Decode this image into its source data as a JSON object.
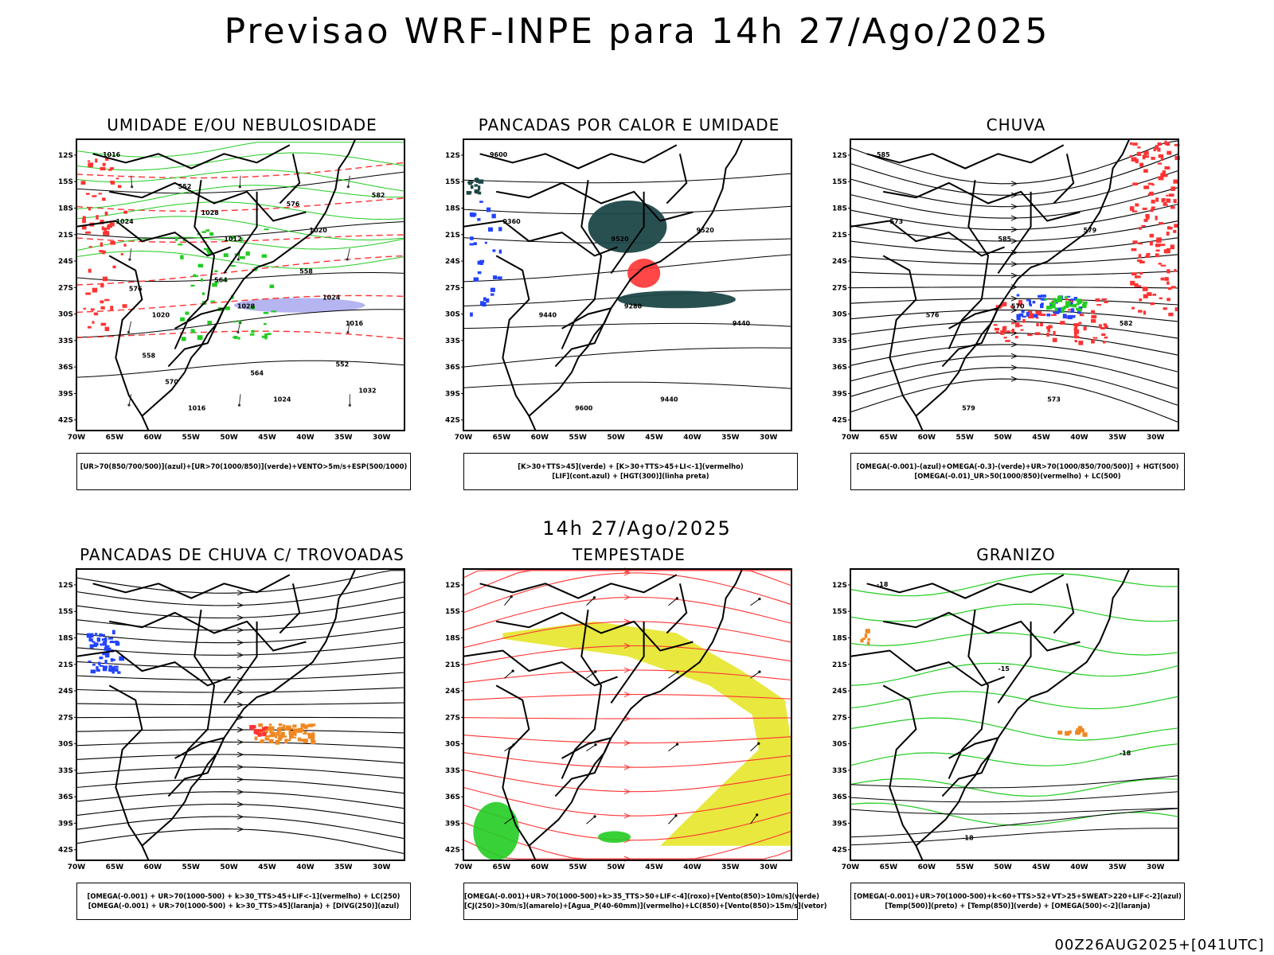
{
  "header": {
    "title": "Previsao WRF-INPE  para 14h 27/Ago/2025"
  },
  "section_mid": {
    "label": "14h 27/Ago/2025"
  },
  "footer": {
    "stamp": "00Z26AUG2025+[041UTC]"
  },
  "axes": {
    "lat_labels": [
      "12S",
      "15S",
      "18S",
      "21S",
      "24S",
      "27S",
      "30S",
      "33S",
      "36S",
      "39S",
      "42S"
    ],
    "lon_labels": [
      "70W",
      "65W",
      "60W",
      "55W",
      "50W",
      "45W",
      "40W",
      "35W",
      "30W"
    ]
  },
  "colors": {
    "red": "#ff3333",
    "green": "#22cc22",
    "blue": "#2244ff",
    "orange": "#ee8822",
    "yellow": "#e6e62a",
    "darkteal": "#1e4747",
    "lavender": "#a8a8ee"
  },
  "panels": [
    {
      "id": "umidade",
      "title": "UMIDADE E/OU NEBULOSIDADE",
      "caption": [
        "[UR>70(850/700/500)](azul)+[UR>70(1000/850)](verde)+VENTO>5m/s+ESP(500/1000)"
      ],
      "contour_labels": [
        "1016",
        "1012",
        "1016",
        "1016",
        "1020",
        "1020",
        "1024",
        "1024",
        "1028",
        "1032",
        "1028",
        "1024",
        "570",
        "576",
        "576",
        "564",
        "582",
        "564",
        "552",
        "552",
        "558",
        "558"
      ]
    },
    {
      "id": "pancadas_calor",
      "title": "PANCADAS POR CALOR E UMIDADE",
      "caption": [
        "[K>30+TTS>45](verde) + [K>30+TTS>45+LI<-1](vermelho)",
        "[LIF](cont.azul) + [HGT(300)](linha preta)"
      ],
      "contour_labels": [
        "9600",
        "9520",
        "9440",
        "9600",
        "9520",
        "9440",
        "9440",
        "9360",
        "9280"
      ]
    },
    {
      "id": "chuva",
      "title": "CHUVA",
      "caption": [
        "[OMEGA(-0.001)-(azul)+OMEGA(-0.3)-(verde)+UR>70(1000/850/700/500)] + HGT(500)",
        "[OMEGA(-0.01)_UR>50(1000/850)(vermelho) + LC(500)"
      ],
      "contour_labels": [
        "585",
        "585",
        "582",
        "579",
        "579",
        "576",
        "573",
        "573",
        "570"
      ]
    },
    {
      "id": "pancadas_trovoadas",
      "title": "PANCADAS DE CHUVA C/ TROVOADAS",
      "caption": [
        "[OMEGA(-0.001) + UR>70(1000-500) + k>30_TTS>45+LIF<-1](vermelho) + LC(250)",
        "[OMEGA(-0.001) + UR>70(1000-500) + k>30_TTS>45](laranja) + [DIVG(250)](azul)"
      ],
      "contour_labels": []
    },
    {
      "id": "tempestade",
      "title": "TEMPESTADE",
      "caption": [
        "[OMEGA(-0.001)+UR>70(1000-500)+k>35_TTS>50+LIF<-4](roxo)+[Vento(850)>10m/s](verde)",
        "[CJ(250)>30m/s](amarelo)+[Agua_P(40-60mm)](vermelho)+LC(850)+[Vento(850)>15m/s](vetor)"
      ],
      "contour_labels": []
    },
    {
      "id": "granizo",
      "title": "GRANIZO",
      "caption": [
        "[OMEGA(-0.001)+UR>70(1000-500)+k<60+TTS>52+VT>25+SWEAT>220+LIF<-2](azul)",
        "[Temp(500)](preto) + [Temp(850)](verde) + [OMEGA(500)<-2](laranja)"
      ],
      "contour_labels": [
        "-18",
        "-15",
        "-18",
        "-18"
      ]
    }
  ]
}
